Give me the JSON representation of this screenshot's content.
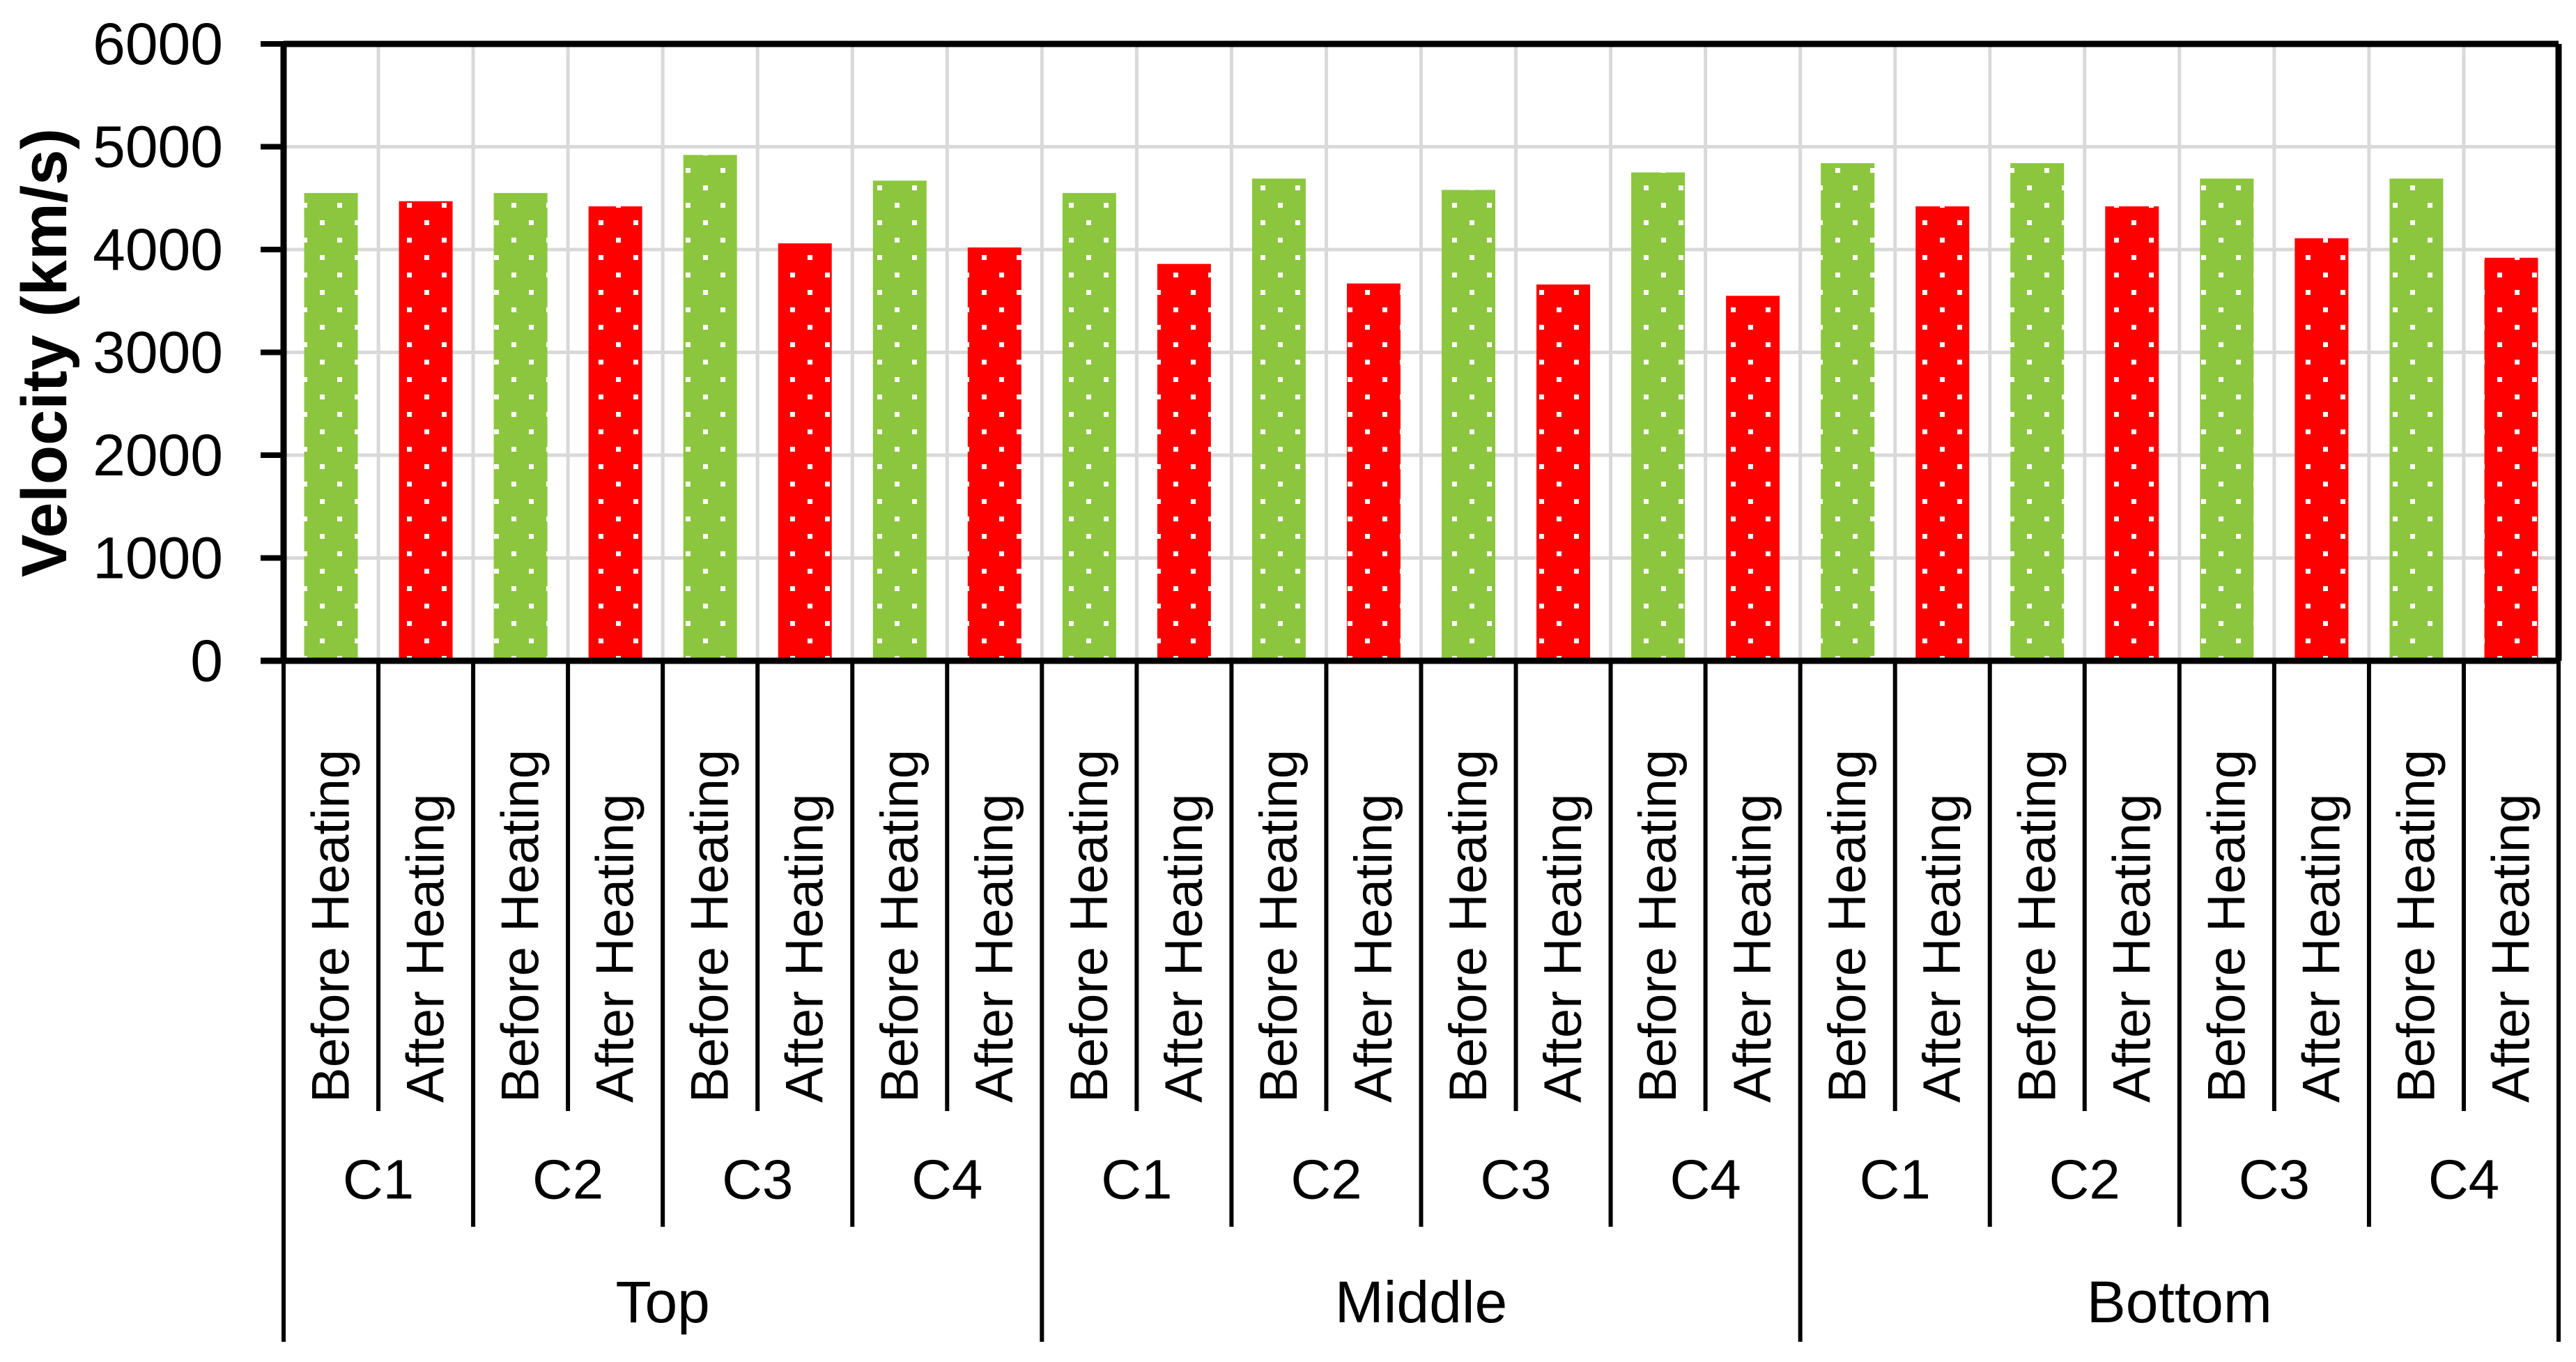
{
  "chart_data": {
    "type": "bar",
    "title": "",
    "ylabel": "Velocity (km/s)",
    "xlabel": "",
    "ylim": [
      0,
      6000
    ],
    "ytick_interval": 1000,
    "ytick_labels": [
      "0",
      "1000",
      "2000",
      "3000",
      "4000",
      "5000",
      "6000"
    ],
    "grid": true,
    "legend": "none",
    "bar_labels": [
      "Before Heating",
      "After Heating"
    ],
    "series": [
      {
        "name": "Before Heating",
        "color": "#8CC63F",
        "pattern": "white-dots"
      },
      {
        "name": "After Heating",
        "color": "#FF0000",
        "pattern": "white-dots"
      }
    ],
    "colors": {
      "before_heating": "#8CC63F",
      "after_heating": "#FF0000",
      "gridline": "#D9D9D9",
      "axis": "#000000",
      "pattern_dot": "#FFFFFF"
    },
    "groups": [
      {
        "label": "Top",
        "categories": [
          {
            "label": "C1",
            "before": 4550,
            "after": 4470
          },
          {
            "label": "C2",
            "before": 4550,
            "after": 4420
          },
          {
            "label": "C3",
            "before": 4920,
            "after": 4060
          },
          {
            "label": "C4",
            "before": 4670,
            "after": 4020
          }
        ]
      },
      {
        "label": "Middle",
        "categories": [
          {
            "label": "C1",
            "before": 4550,
            "after": 3860
          },
          {
            "label": "C2",
            "before": 4690,
            "after": 3670
          },
          {
            "label": "C3",
            "before": 4580,
            "after": 3660
          },
          {
            "label": "C4",
            "before": 4750,
            "after": 3550
          }
        ]
      },
      {
        "label": "Bottom",
        "categories": [
          {
            "label": "C1",
            "before": 4840,
            "after": 4420
          },
          {
            "label": "C2",
            "before": 4840,
            "after": 4420
          },
          {
            "label": "C3",
            "before": 4690,
            "after": 4110
          },
          {
            "label": "C4",
            "before": 4690,
            "after": 3920
          }
        ]
      }
    ]
  }
}
